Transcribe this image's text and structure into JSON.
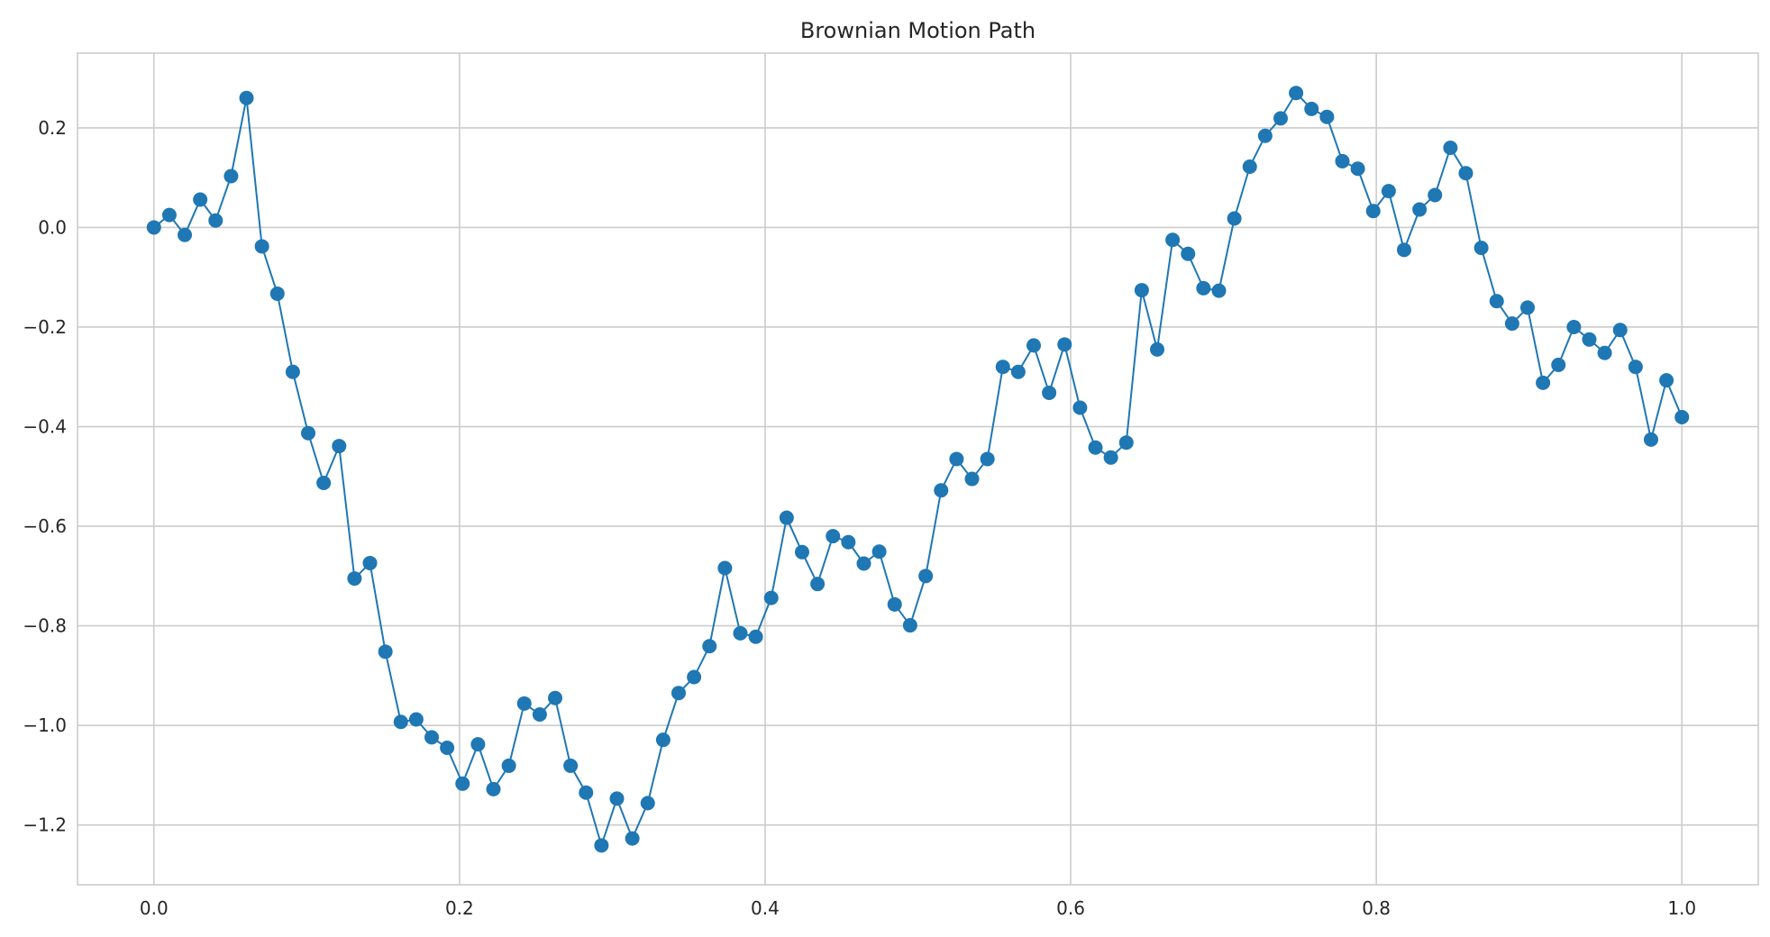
{
  "chart_data": {
    "type": "line",
    "title": "Brownian Motion Path",
    "xlabel": "",
    "ylabel": "",
    "xlim": [
      -0.05,
      1.05
    ],
    "ylim": [
      -1.32,
      0.35
    ],
    "xticks": [
      0.0,
      0.2,
      0.4,
      0.6,
      0.8,
      1.0
    ],
    "xtick_labels": [
      "0.0",
      "0.2",
      "0.4",
      "0.6",
      "0.8",
      "1.0"
    ],
    "yticks": [
      0.2,
      0.0,
      -0.2,
      -0.4,
      -0.6,
      -0.8,
      -1.0,
      -1.2
    ],
    "ytick_labels": [
      "0.2",
      "0.0",
      "−0.2",
      "−0.4",
      "−0.6",
      "−0.8",
      "−1.0",
      "−1.2"
    ],
    "grid": true,
    "markers": true,
    "color": "#1f77b4",
    "series": [
      {
        "x": [
          0.0,
          0.0101,
          0.0202,
          0.0303,
          0.0404,
          0.0505,
          0.0606,
          0.0707,
          0.0808,
          0.0909,
          0.101,
          0.1111,
          0.1212,
          0.1313,
          0.1414,
          0.1515,
          0.1616,
          0.1717,
          0.1818,
          0.1919,
          0.202,
          0.2121,
          0.2222,
          0.2323,
          0.2424,
          0.2525,
          0.2626,
          0.2727,
          0.2828,
          0.2929,
          0.303,
          0.3131,
          0.3232,
          0.3333,
          0.3434,
          0.3535,
          0.3636,
          0.3737,
          0.3838,
          0.3939,
          0.404,
          0.4141,
          0.4242,
          0.4343,
          0.4444,
          0.4545,
          0.4646,
          0.4747,
          0.4848,
          0.4949,
          0.5051,
          0.5152,
          0.5253,
          0.5354,
          0.5455,
          0.5556,
          0.5657,
          0.5758,
          0.5859,
          0.596,
          0.6061,
          0.6162,
          0.6263,
          0.6364,
          0.6465,
          0.6566,
          0.6667,
          0.6768,
          0.6869,
          0.697,
          0.7071,
          0.7172,
          0.7273,
          0.7374,
          0.7475,
          0.7576,
          0.7677,
          0.7778,
          0.7879,
          0.798,
          0.8081,
          0.8182,
          0.8283,
          0.8384,
          0.8485,
          0.8586,
          0.8687,
          0.8788,
          0.8889,
          0.899,
          0.9091,
          0.9192,
          0.9293,
          0.9394,
          0.9495,
          0.9596,
          0.9697,
          0.9798,
          0.9899,
          1.0
        ],
        "y": [
          0.0,
          0.025,
          -0.015,
          0.056,
          0.014,
          0.103,
          0.26,
          -0.038,
          -0.133,
          -0.29,
          -0.413,
          -0.513,
          -0.439,
          -0.705,
          -0.674,
          -0.852,
          -0.993,
          -0.988,
          -1.024,
          -1.045,
          -1.117,
          -1.038,
          -1.128,
          -1.081,
          -0.956,
          -0.978,
          -0.945,
          -1.081,
          -1.135,
          -1.241,
          -1.147,
          -1.227,
          -1.156,
          -1.029,
          -0.935,
          -0.903,
          -0.841,
          -0.684,
          -0.815,
          -0.822,
          -0.744,
          -0.583,
          -0.652,
          -0.716,
          -0.62,
          -0.632,
          -0.675,
          -0.651,
          -0.757,
          -0.799,
          -0.7,
          -0.528,
          -0.465,
          -0.505,
          -0.465,
          -0.28,
          -0.29,
          -0.237,
          -0.332,
          -0.235,
          -0.362,
          -0.442,
          -0.462,
          -0.432,
          -0.126,
          -0.245,
          -0.025,
          -0.053,
          -0.122,
          -0.127,
          0.018,
          0.122,
          0.184,
          0.219,
          0.27,
          0.238,
          0.222,
          0.133,
          0.118,
          0.033,
          0.073,
          -0.045,
          0.036,
          0.065,
          0.16,
          0.109,
          -0.041,
          -0.148,
          -0.193,
          -0.161,
          -0.312,
          -0.276,
          -0.2,
          -0.225,
          -0.252,
          -0.206,
          -0.28,
          -0.426,
          -0.307,
          -0.381
        ]
      }
    ]
  }
}
